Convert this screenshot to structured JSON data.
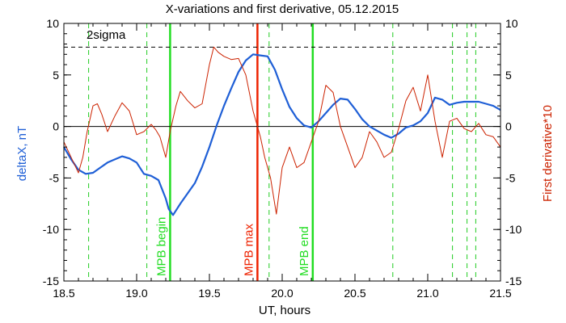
{
  "chart_data": {
    "type": "line",
    "title": "X-variations and first derivative, 05.12.2015",
    "xlabel": "UT, hours",
    "ylabel_left": "deltaX, nT",
    "ylabel_right": "First derivative*10",
    "xlim": [
      18.5,
      21.5
    ],
    "ylim_left": [
      -15,
      10
    ],
    "ylim_right": [
      -15,
      10
    ],
    "x_ticks": [
      "18.5",
      "19.0",
      "19.5",
      "20.0",
      "20.5",
      "21.0",
      "21.5"
    ],
    "y_ticks_left": [
      "10",
      "5",
      "0",
      "-5",
      "-10",
      "-15"
    ],
    "y_ticks_right": [
      "10",
      "5",
      "0",
      "-5",
      "-10",
      "-15"
    ],
    "colors": {
      "deltaX": "#1f5fd6",
      "derivative": "#cc2200",
      "mpb_markers": "#22dd22",
      "mpb_max": "#ee2200",
      "dashed_green": "#22cc22",
      "threshold": "#000000",
      "zero_line": "#000000"
    },
    "sigma_level": {
      "label": "2sigma",
      "y": 7.7
    },
    "zero_line": 0,
    "series": [
      {
        "name": "deltaX",
        "axis": "left",
        "x": [
          18.5,
          18.55,
          18.6,
          18.65,
          18.7,
          18.75,
          18.8,
          18.85,
          18.9,
          18.95,
          19.0,
          19.05,
          19.1,
          19.15,
          19.2,
          19.22,
          19.25,
          19.3,
          19.35,
          19.4,
          19.45,
          19.5,
          19.55,
          19.6,
          19.65,
          19.7,
          19.75,
          19.8,
          19.85,
          19.9,
          19.95,
          20.0,
          20.05,
          20.1,
          20.15,
          20.2,
          20.25,
          20.3,
          20.35,
          20.4,
          20.45,
          20.5,
          20.55,
          20.6,
          20.65,
          20.7,
          20.75,
          20.8,
          20.85,
          20.9,
          20.95,
          21.0,
          21.05,
          21.1,
          21.15,
          21.2,
          21.25,
          21.3,
          21.35,
          21.4,
          21.45,
          21.5
        ],
        "y": [
          -2.0,
          -3.2,
          -4.2,
          -4.6,
          -4.5,
          -4.0,
          -3.5,
          -3.2,
          -2.9,
          -3.1,
          -3.5,
          -4.6,
          -4.8,
          -5.2,
          -7.0,
          -8.0,
          -8.6,
          -7.5,
          -6.5,
          -5.5,
          -3.9,
          -2.0,
          0.1,
          2.0,
          3.7,
          5.3,
          6.4,
          7.0,
          6.9,
          6.8,
          5.5,
          3.6,
          1.9,
          0.8,
          0.1,
          -0.1,
          0.5,
          1.3,
          2.1,
          2.7,
          2.6,
          1.7,
          0.7,
          0.0,
          -0.4,
          -0.8,
          -1.1,
          -0.7,
          -0.1,
          0.1,
          0.5,
          1.3,
          2.8,
          2.6,
          2.1,
          2.3,
          2.4,
          2.4,
          2.4,
          2.2,
          2.0,
          1.6
        ]
      },
      {
        "name": "First derivative*10",
        "axis": "right",
        "x": [
          18.5,
          18.55,
          18.6,
          18.63,
          18.66,
          18.7,
          18.73,
          18.76,
          18.8,
          18.85,
          18.9,
          18.95,
          19.0,
          19.05,
          19.1,
          19.13,
          19.16,
          19.2,
          19.23,
          19.27,
          19.3,
          19.35,
          19.4,
          19.45,
          19.5,
          19.53,
          19.56,
          19.6,
          19.65,
          19.7,
          19.75,
          19.8,
          19.85,
          19.88,
          19.92,
          19.96,
          20.0,
          20.05,
          20.1,
          20.15,
          20.2,
          20.25,
          20.3,
          20.35,
          20.4,
          20.45,
          20.5,
          20.55,
          20.6,
          20.65,
          20.7,
          20.75,
          20.8,
          20.85,
          20.9,
          20.95,
          21.0,
          21.05,
          21.1,
          21.15,
          21.2,
          21.25,
          21.3,
          21.35,
          21.4,
          21.45,
          21.5
        ],
        "y": [
          -1.5,
          -3.0,
          -4.5,
          -3.0,
          -0.5,
          2.0,
          2.2,
          1.2,
          -0.5,
          1.0,
          2.3,
          1.5,
          -0.8,
          -0.5,
          0.2,
          -0.3,
          -1.0,
          -3.0,
          -0.5,
          2.0,
          3.4,
          2.5,
          1.8,
          2.2,
          6.0,
          7.7,
          7.2,
          6.8,
          6.5,
          6.6,
          5.0,
          1.5,
          -1.0,
          -3.0,
          -5.0,
          -8.5,
          -4.0,
          -2.0,
          -4.0,
          -3.5,
          -1.5,
          0.5,
          4.0,
          3.3,
          0.0,
          -2.0,
          -4.0,
          -3.0,
          -0.5,
          -1.5,
          -3.0,
          -2.5,
          -0.2,
          2.5,
          3.8,
          1.5,
          5.0,
          0.5,
          -3.0,
          0.5,
          0.8,
          -0.2,
          -0.5,
          0.3,
          -0.8,
          -1.0,
          -2.0
        ]
      }
    ],
    "vertical_markers": [
      {
        "x": 18.67,
        "style": "dashed",
        "color": "#22cc22",
        "label": ""
      },
      {
        "x": 19.07,
        "style": "dashed",
        "color": "#22cc22",
        "label": ""
      },
      {
        "x": 19.23,
        "style": "solid",
        "color": "#22dd22",
        "label": "MPB begin"
      },
      {
        "x": 19.83,
        "style": "solid",
        "color": "#ee2200",
        "label": "MPB max"
      },
      {
        "x": 19.91,
        "style": "dashed",
        "color": "#22cc22",
        "label": ""
      },
      {
        "x": 20.21,
        "style": "solid",
        "color": "#22dd22",
        "label": "MPB end"
      },
      {
        "x": 20.76,
        "style": "dashed",
        "color": "#22cc22",
        "label": ""
      },
      {
        "x": 21.17,
        "style": "dashed",
        "color": "#22cc22",
        "label": ""
      },
      {
        "x": 21.27,
        "style": "dashed",
        "color": "#22cc22",
        "label": ""
      },
      {
        "x": 21.33,
        "style": "dashed",
        "color": "#22cc22",
        "label": ""
      }
    ]
  }
}
